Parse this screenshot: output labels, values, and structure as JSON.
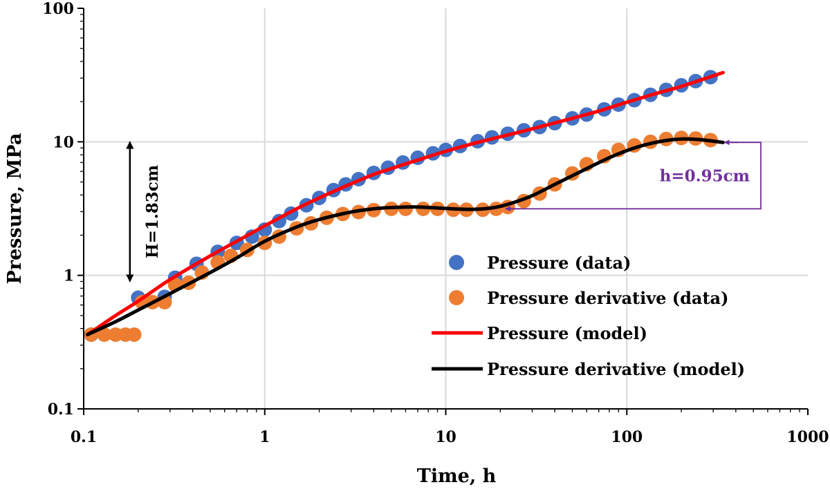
{
  "chart_data": {
    "type": "scatter",
    "xlabel": "Time, h",
    "ylabel": "Pressure, MPa",
    "xscale": "log",
    "yscale": "log",
    "xlim": [
      0.1,
      1000
    ],
    "ylim": [
      0.1,
      100
    ],
    "x_ticks": [
      "0.1",
      "1",
      "10",
      "100",
      "1000"
    ],
    "y_ticks": [
      "0.1",
      "1",
      "10",
      "100"
    ],
    "grid": true,
    "legend_position": "lower-right",
    "colors": {
      "pressure_data": "#4472C4",
      "derivative_data": "#ED7D31",
      "pressure_model": "#FF0000",
      "derivative_model": "#000000",
      "annotation_h": "#7030A0",
      "annotation_H": "#000000"
    },
    "series": [
      {
        "name": "Pressure (data)",
        "kind": "markers",
        "x": [
          0.11,
          0.2,
          0.28,
          0.32,
          0.42,
          0.55,
          0.7,
          0.85,
          1.0,
          1.2,
          1.4,
          1.7,
          2.0,
          2.4,
          2.8,
          3.3,
          4.0,
          4.8,
          5.8,
          7.0,
          8.5,
          10,
          12,
          15,
          18,
          22,
          27,
          33,
          40,
          50,
          60,
          75,
          90,
          110,
          135,
          165,
          200,
          240,
          290
        ],
        "y": [
          0.36,
          0.68,
          0.69,
          0.96,
          1.22,
          1.5,
          1.75,
          1.95,
          2.2,
          2.55,
          2.9,
          3.35,
          3.8,
          4.35,
          4.8,
          5.25,
          5.85,
          6.4,
          7.0,
          7.6,
          8.2,
          8.7,
          9.3,
          10.1,
          10.8,
          11.5,
          12.2,
          12.9,
          13.8,
          15.0,
          16.0,
          17.5,
          19.0,
          20.5,
          22.5,
          24.5,
          26.5,
          28.5,
          30.5
        ]
      },
      {
        "name": "Pressure derivative (data)",
        "kind": "markers",
        "x": [
          0.11,
          0.13,
          0.15,
          0.17,
          0.19,
          0.21,
          0.24,
          0.28,
          0.32,
          0.38,
          0.45,
          0.55,
          0.65,
          0.8,
          1.0,
          1.2,
          1.5,
          1.8,
          2.2,
          2.7,
          3.3,
          4.0,
          5.0,
          6.0,
          7.5,
          9.0,
          11,
          13,
          16,
          19,
          22,
          27,
          33,
          40,
          50,
          60,
          75,
          90,
          110,
          135,
          165,
          200,
          240,
          290
        ],
        "y": [
          0.36,
          0.36,
          0.36,
          0.36,
          0.36,
          0.63,
          0.63,
          0.63,
          0.85,
          0.88,
          1.05,
          1.25,
          1.4,
          1.55,
          1.75,
          1.95,
          2.25,
          2.45,
          2.7,
          2.88,
          2.98,
          3.08,
          3.15,
          3.15,
          3.15,
          3.15,
          3.1,
          3.1,
          3.1,
          3.15,
          3.25,
          3.6,
          4.1,
          4.8,
          5.8,
          6.8,
          7.8,
          8.7,
          9.4,
          10.0,
          10.5,
          10.7,
          10.6,
          10.3
        ]
      },
      {
        "name": "Pressure (model)",
        "kind": "line",
        "x": [
          0.105,
          0.15,
          0.2,
          0.3,
          0.5,
          0.7,
          1.0,
          1.5,
          2,
          3,
          4,
          5,
          7,
          10,
          15,
          20,
          30,
          50,
          70,
          100,
          150,
          200,
          340
        ],
        "y": [
          0.36,
          0.5,
          0.64,
          0.93,
          1.4,
          1.8,
          2.35,
          3.15,
          3.8,
          4.85,
          5.7,
          6.3,
          7.3,
          8.5,
          9.9,
          10.9,
          12.5,
          15.0,
          17.0,
          19.8,
          23.3,
          26.0,
          33.0
        ]
      },
      {
        "name": "Pressure derivative (model)",
        "kind": "line",
        "x": [
          0.105,
          0.15,
          0.2,
          0.3,
          0.5,
          0.7,
          1.0,
          1.5,
          2,
          3,
          4,
          5,
          7,
          10,
          14,
          18,
          22,
          30,
          40,
          60,
          80,
          100,
          130,
          170,
          200,
          250,
          340
        ],
        "y": [
          0.36,
          0.45,
          0.55,
          0.73,
          1.05,
          1.35,
          1.8,
          2.3,
          2.62,
          2.98,
          3.15,
          3.22,
          3.25,
          3.17,
          3.12,
          3.2,
          3.4,
          3.95,
          4.8,
          6.3,
          7.6,
          8.6,
          9.6,
          10.3,
          10.5,
          10.4,
          9.9
        ]
      }
    ],
    "annotations": [
      {
        "text": "H=1.83cm",
        "kind": "vertical-double-arrow",
        "x": 0.18,
        "y_from": 0.9,
        "y_to": 10
      },
      {
        "text": "h=0.95cm",
        "kind": "bracket-double-arrow",
        "from": [
          340,
          9.9
        ],
        "to": [
          21,
          3.15
        ],
        "bracket_x": 1100
      }
    ]
  }
}
